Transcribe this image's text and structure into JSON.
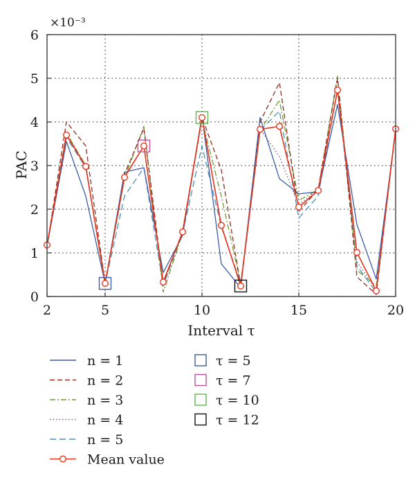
{
  "chart_data": {
    "type": "line",
    "xlabel": "Interval τ",
    "ylabel": "PAC",
    "y_multiplier": "×10⁻³",
    "xlim": [
      2,
      20
    ],
    "ylim": [
      0,
      6
    ],
    "x_ticks": [
      "2",
      "5",
      "10",
      "15",
      "20"
    ],
    "y_ticks": [
      "0",
      "1",
      "2",
      "3",
      "4",
      "5",
      "6"
    ],
    "grid": "dotted",
    "legend_position": "below",
    "x": [
      2,
      3,
      4,
      5,
      6,
      7,
      8,
      9,
      10,
      11,
      12,
      13,
      14,
      15,
      16,
      17,
      18,
      19,
      20
    ],
    "series": [
      {
        "name": "n = 1",
        "color": "#3a5ba5",
        "dash": "solid",
        "values": [
          1.15,
          3.55,
          2.3,
          0.3,
          2.85,
          2.95,
          0.55,
          1.4,
          4.15,
          0.75,
          0.2,
          4.1,
          2.7,
          2.35,
          2.4,
          4.4,
          1.65,
          0.4,
          3.8
        ]
      },
      {
        "name": "n = 2",
        "color": "#8b2a1e",
        "dash": "dashed",
        "values": [
          1.15,
          4.0,
          3.45,
          0.3,
          2.8,
          3.85,
          0.3,
          1.5,
          4.1,
          2.9,
          0.25,
          4.0,
          4.9,
          1.95,
          2.45,
          5.0,
          0.45,
          0.05,
          3.85
        ]
      },
      {
        "name": "n = 3",
        "color": "#6f9a30",
        "dash": "dashdot",
        "values": [
          1.15,
          3.75,
          3.0,
          0.3,
          2.7,
          3.9,
          0.1,
          1.45,
          4.05,
          2.3,
          0.3,
          3.8,
          4.5,
          2.2,
          2.45,
          5.05,
          0.6,
          0.25,
          3.85
        ]
      },
      {
        "name": "n = 4",
        "color": "#7a4f8c",
        "dash": "dotted",
        "values": [
          1.15,
          3.75,
          3.0,
          0.3,
          2.75,
          3.45,
          0.35,
          1.45,
          4.1,
          1.6,
          0.25,
          3.85,
          3.2,
          2.1,
          2.45,
          4.7,
          0.8,
          0.15,
          3.85
        ]
      },
      {
        "name": "n = 5",
        "color": "#4a8fb5",
        "dash": "longdash",
        "values": [
          1.15,
          3.65,
          2.95,
          0.3,
          2.3,
          2.95,
          0.25,
          1.45,
          3.45,
          1.6,
          0.3,
          3.8,
          4.25,
          1.8,
          2.3,
          4.75,
          0.7,
          0.1,
          3.85
        ]
      },
      {
        "name": "Mean value",
        "color": "#e8341c",
        "dash": "solid",
        "marker": "circle",
        "values": [
          1.18,
          3.7,
          2.98,
          0.3,
          2.73,
          3.45,
          0.33,
          1.48,
          4.1,
          1.63,
          0.24,
          3.83,
          3.9,
          2.05,
          2.43,
          4.73,
          1.01,
          0.13,
          3.84
        ]
      }
    ],
    "highlights": [
      {
        "name": "τ = 5",
        "x": 5,
        "y": 0.3,
        "color": "#3a5ba5"
      },
      {
        "name": "τ = 7",
        "x": 7,
        "y": 3.45,
        "color": "#c0509a"
      },
      {
        "name": "τ = 10",
        "x": 10,
        "y": 4.1,
        "color": "#5bb84a"
      },
      {
        "name": "τ = 12",
        "x": 12,
        "y": 0.24,
        "color": "#111111"
      }
    ]
  }
}
